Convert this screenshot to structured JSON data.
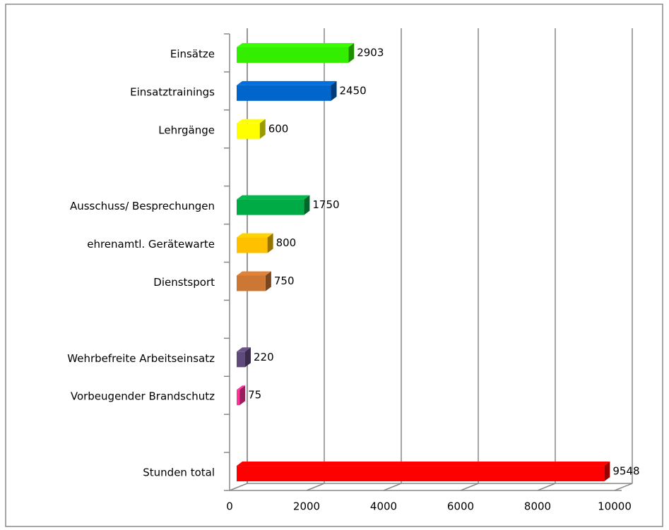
{
  "chart_data": {
    "type": "bar",
    "orientation": "horizontal",
    "categories": [
      "Einsätze",
      "Einsatztrainings",
      "Lehrgänge",
      null,
      "Ausschuss/ Besprechungen",
      "ehrenamtl. Gerätewarte",
      "Dienstsport",
      null,
      "Wehrbefreite Arbeitseinsatz",
      "Vorbeugender Brandschutz",
      null,
      "Stunden total"
    ],
    "values": [
      2903,
      2450,
      600,
      null,
      1750,
      800,
      750,
      null,
      220,
      75,
      null,
      9548
    ],
    "colors": [
      "#33ee00",
      "#0066cc",
      "#ffff00",
      null,
      "#00aa44",
      "#ffc000",
      "#cc7733",
      null,
      "#604a7b",
      "#ff3399",
      null,
      "#ff0000"
    ],
    "xlim": [
      0,
      10000
    ],
    "xticks": [
      0,
      2000,
      4000,
      6000,
      8000,
      10000
    ],
    "grid": true
  }
}
